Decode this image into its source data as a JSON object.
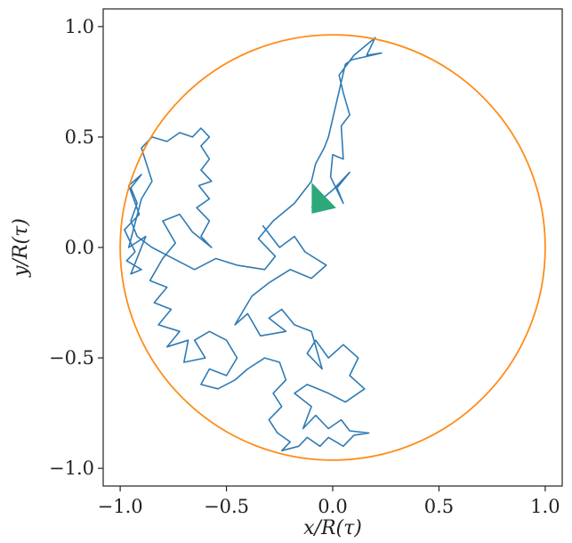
{
  "chart_data": {
    "type": "line",
    "xlabel": "x/R(τ)",
    "ylabel": "y/R(τ)",
    "xlim": [
      -1.08,
      1.08
    ],
    "ylim": [
      -1.08,
      1.08
    ],
    "xticks": [
      -1.0,
      -0.5,
      0.0,
      0.5,
      1.0
    ],
    "xtick_labels": [
      "−1.0",
      "−0.5",
      "0.0",
      "0.5",
      "1.0"
    ],
    "yticks": [
      -1.0,
      -0.5,
      0.0,
      0.5,
      1.0
    ],
    "ytick_labels": [
      "−1.0",
      "−0.5",
      "0.0",
      "0.5",
      "1.0"
    ],
    "grid": false,
    "colors": {
      "trajectory": "#2e7bb4",
      "boundary": "#ff8c1a",
      "marker": "#2ca87a"
    },
    "boundary_circle": {
      "center": [
        0,
        0
      ],
      "radius": 1.0
    },
    "marker": {
      "x": -0.08,
      "y": 0.18,
      "shape": "triangle"
    },
    "series": [
      {
        "role": "trajectory",
        "points": [
          [
            -0.1,
            0.18
          ],
          [
            -0.05,
            0.22
          ],
          [
            0.0,
            0.26
          ],
          [
            0.08,
            0.34
          ],
          [
            0.02,
            0.27
          ],
          [
            0.05,
            0.2
          ],
          [
            -0.01,
            0.32
          ],
          [
            0.0,
            0.42
          ],
          [
            0.05,
            0.4
          ],
          [
            0.04,
            0.55
          ],
          [
            0.08,
            0.6
          ],
          [
            0.05,
            0.7
          ],
          [
            0.03,
            0.78
          ],
          [
            0.1,
            0.87
          ],
          [
            0.2,
            0.95
          ],
          [
            0.16,
            0.87
          ],
          [
            0.23,
            0.88
          ],
          [
            0.09,
            0.85
          ],
          [
            0.06,
            0.83
          ],
          [
            -0.02,
            0.5
          ],
          [
            -0.04,
            0.45
          ],
          [
            -0.08,
            0.38
          ],
          [
            -0.1,
            0.3
          ],
          [
            -0.18,
            0.2
          ],
          [
            -0.28,
            0.12
          ],
          [
            -0.35,
            0.04
          ],
          [
            -0.27,
            -0.04
          ],
          [
            -0.32,
            -0.1
          ],
          [
            -0.45,
            -0.08
          ],
          [
            -0.55,
            -0.05
          ],
          [
            -0.65,
            -0.1
          ],
          [
            -0.75,
            -0.05
          ],
          [
            -0.85,
            0.0
          ],
          [
            -0.92,
            0.05
          ],
          [
            -0.95,
            0.12
          ],
          [
            -0.92,
            0.2
          ],
          [
            -0.95,
            0.27
          ],
          [
            -0.9,
            0.33
          ],
          [
            -0.96,
            0.28
          ],
          [
            -0.91,
            0.15
          ],
          [
            -0.98,
            0.08
          ],
          [
            -0.93,
            -0.02
          ],
          [
            -0.97,
            -0.06
          ],
          [
            -0.9,
            -0.1
          ],
          [
            -0.95,
            -0.12
          ],
          [
            -0.88,
            0.05
          ],
          [
            -0.96,
            0.0
          ],
          [
            -0.9,
            0.22
          ],
          [
            -0.85,
            0.3
          ],
          [
            -0.9,
            0.45
          ],
          [
            -0.85,
            0.5
          ],
          [
            -0.78,
            0.48
          ],
          [
            -0.72,
            0.52
          ],
          [
            -0.66,
            0.5
          ],
          [
            -0.62,
            0.54
          ],
          [
            -0.58,
            0.5
          ],
          [
            -0.62,
            0.46
          ],
          [
            -0.58,
            0.4
          ],
          [
            -0.62,
            0.35
          ],
          [
            -0.57,
            0.3
          ],
          [
            -0.63,
            0.28
          ],
          [
            -0.58,
            0.22
          ],
          [
            -0.64,
            0.18
          ],
          [
            -0.58,
            0.12
          ],
          [
            -0.62,
            0.05
          ],
          [
            -0.57,
            0.0
          ],
          [
            -0.66,
            0.07
          ],
          [
            -0.72,
            0.15
          ],
          [
            -0.8,
            0.12
          ],
          [
            -0.74,
            0.02
          ],
          [
            -0.8,
            -0.05
          ],
          [
            -0.86,
            -0.15
          ],
          [
            -0.78,
            -0.18
          ],
          [
            -0.84,
            -0.25
          ],
          [
            -0.76,
            -0.28
          ],
          [
            -0.82,
            -0.35
          ],
          [
            -0.72,
            -0.38
          ],
          [
            -0.78,
            -0.45
          ],
          [
            -0.68,
            -0.42
          ],
          [
            -0.7,
            -0.52
          ],
          [
            -0.6,
            -0.5
          ],
          [
            -0.65,
            -0.42
          ],
          [
            -0.58,
            -0.38
          ],
          [
            -0.5,
            -0.42
          ],
          [
            -0.45,
            -0.5
          ],
          [
            -0.5,
            -0.58
          ],
          [
            -0.58,
            -0.55
          ],
          [
            -0.62,
            -0.62
          ],
          [
            -0.54,
            -0.64
          ],
          [
            -0.46,
            -0.6
          ],
          [
            -0.4,
            -0.55
          ],
          [
            -0.32,
            -0.5
          ],
          [
            -0.25,
            -0.52
          ],
          [
            -0.22,
            -0.6
          ],
          [
            -0.28,
            -0.66
          ],
          [
            -0.24,
            -0.72
          ],
          [
            -0.3,
            -0.78
          ],
          [
            -0.26,
            -0.84
          ],
          [
            -0.2,
            -0.88
          ],
          [
            -0.24,
            -0.92
          ],
          [
            -0.16,
            -0.9
          ],
          [
            -0.12,
            -0.86
          ],
          [
            -0.06,
            -0.9
          ],
          [
            -0.02,
            -0.86
          ],
          [
            0.05,
            -0.9
          ],
          [
            0.1,
            -0.85
          ],
          [
            0.17,
            -0.84
          ],
          [
            0.08,
            -0.83
          ],
          [
            0.04,
            -0.78
          ],
          [
            -0.02,
            -0.82
          ],
          [
            -0.08,
            -0.76
          ],
          [
            -0.14,
            -0.82
          ],
          [
            -0.1,
            -0.72
          ],
          [
            -0.18,
            -0.66
          ],
          [
            -0.12,
            -0.62
          ],
          [
            -0.02,
            -0.66
          ],
          [
            0.06,
            -0.7
          ],
          [
            0.15,
            -0.64
          ],
          [
            0.08,
            -0.58
          ],
          [
            0.12,
            -0.5
          ],
          [
            0.05,
            -0.44
          ],
          [
            -0.02,
            -0.5
          ],
          [
            -0.08,
            -0.42
          ],
          [
            -0.12,
            -0.48
          ],
          [
            -0.05,
            -0.55
          ],
          [
            -0.1,
            -0.38
          ],
          [
            -0.18,
            -0.35
          ],
          [
            -0.24,
            -0.28
          ],
          [
            -0.3,
            -0.32
          ],
          [
            -0.22,
            -0.38
          ],
          [
            -0.34,
            -0.4
          ],
          [
            -0.4,
            -0.3
          ],
          [
            -0.46,
            -0.35
          ],
          [
            -0.38,
            -0.22
          ],
          [
            -0.3,
            -0.16
          ],
          [
            -0.2,
            -0.1
          ],
          [
            -0.1,
            -0.14
          ],
          [
            -0.03,
            -0.08
          ],
          [
            -0.13,
            -0.02
          ],
          [
            -0.18,
            0.05
          ],
          [
            -0.25,
            0.0
          ],
          [
            -0.33,
            0.1
          ]
        ]
      }
    ]
  }
}
